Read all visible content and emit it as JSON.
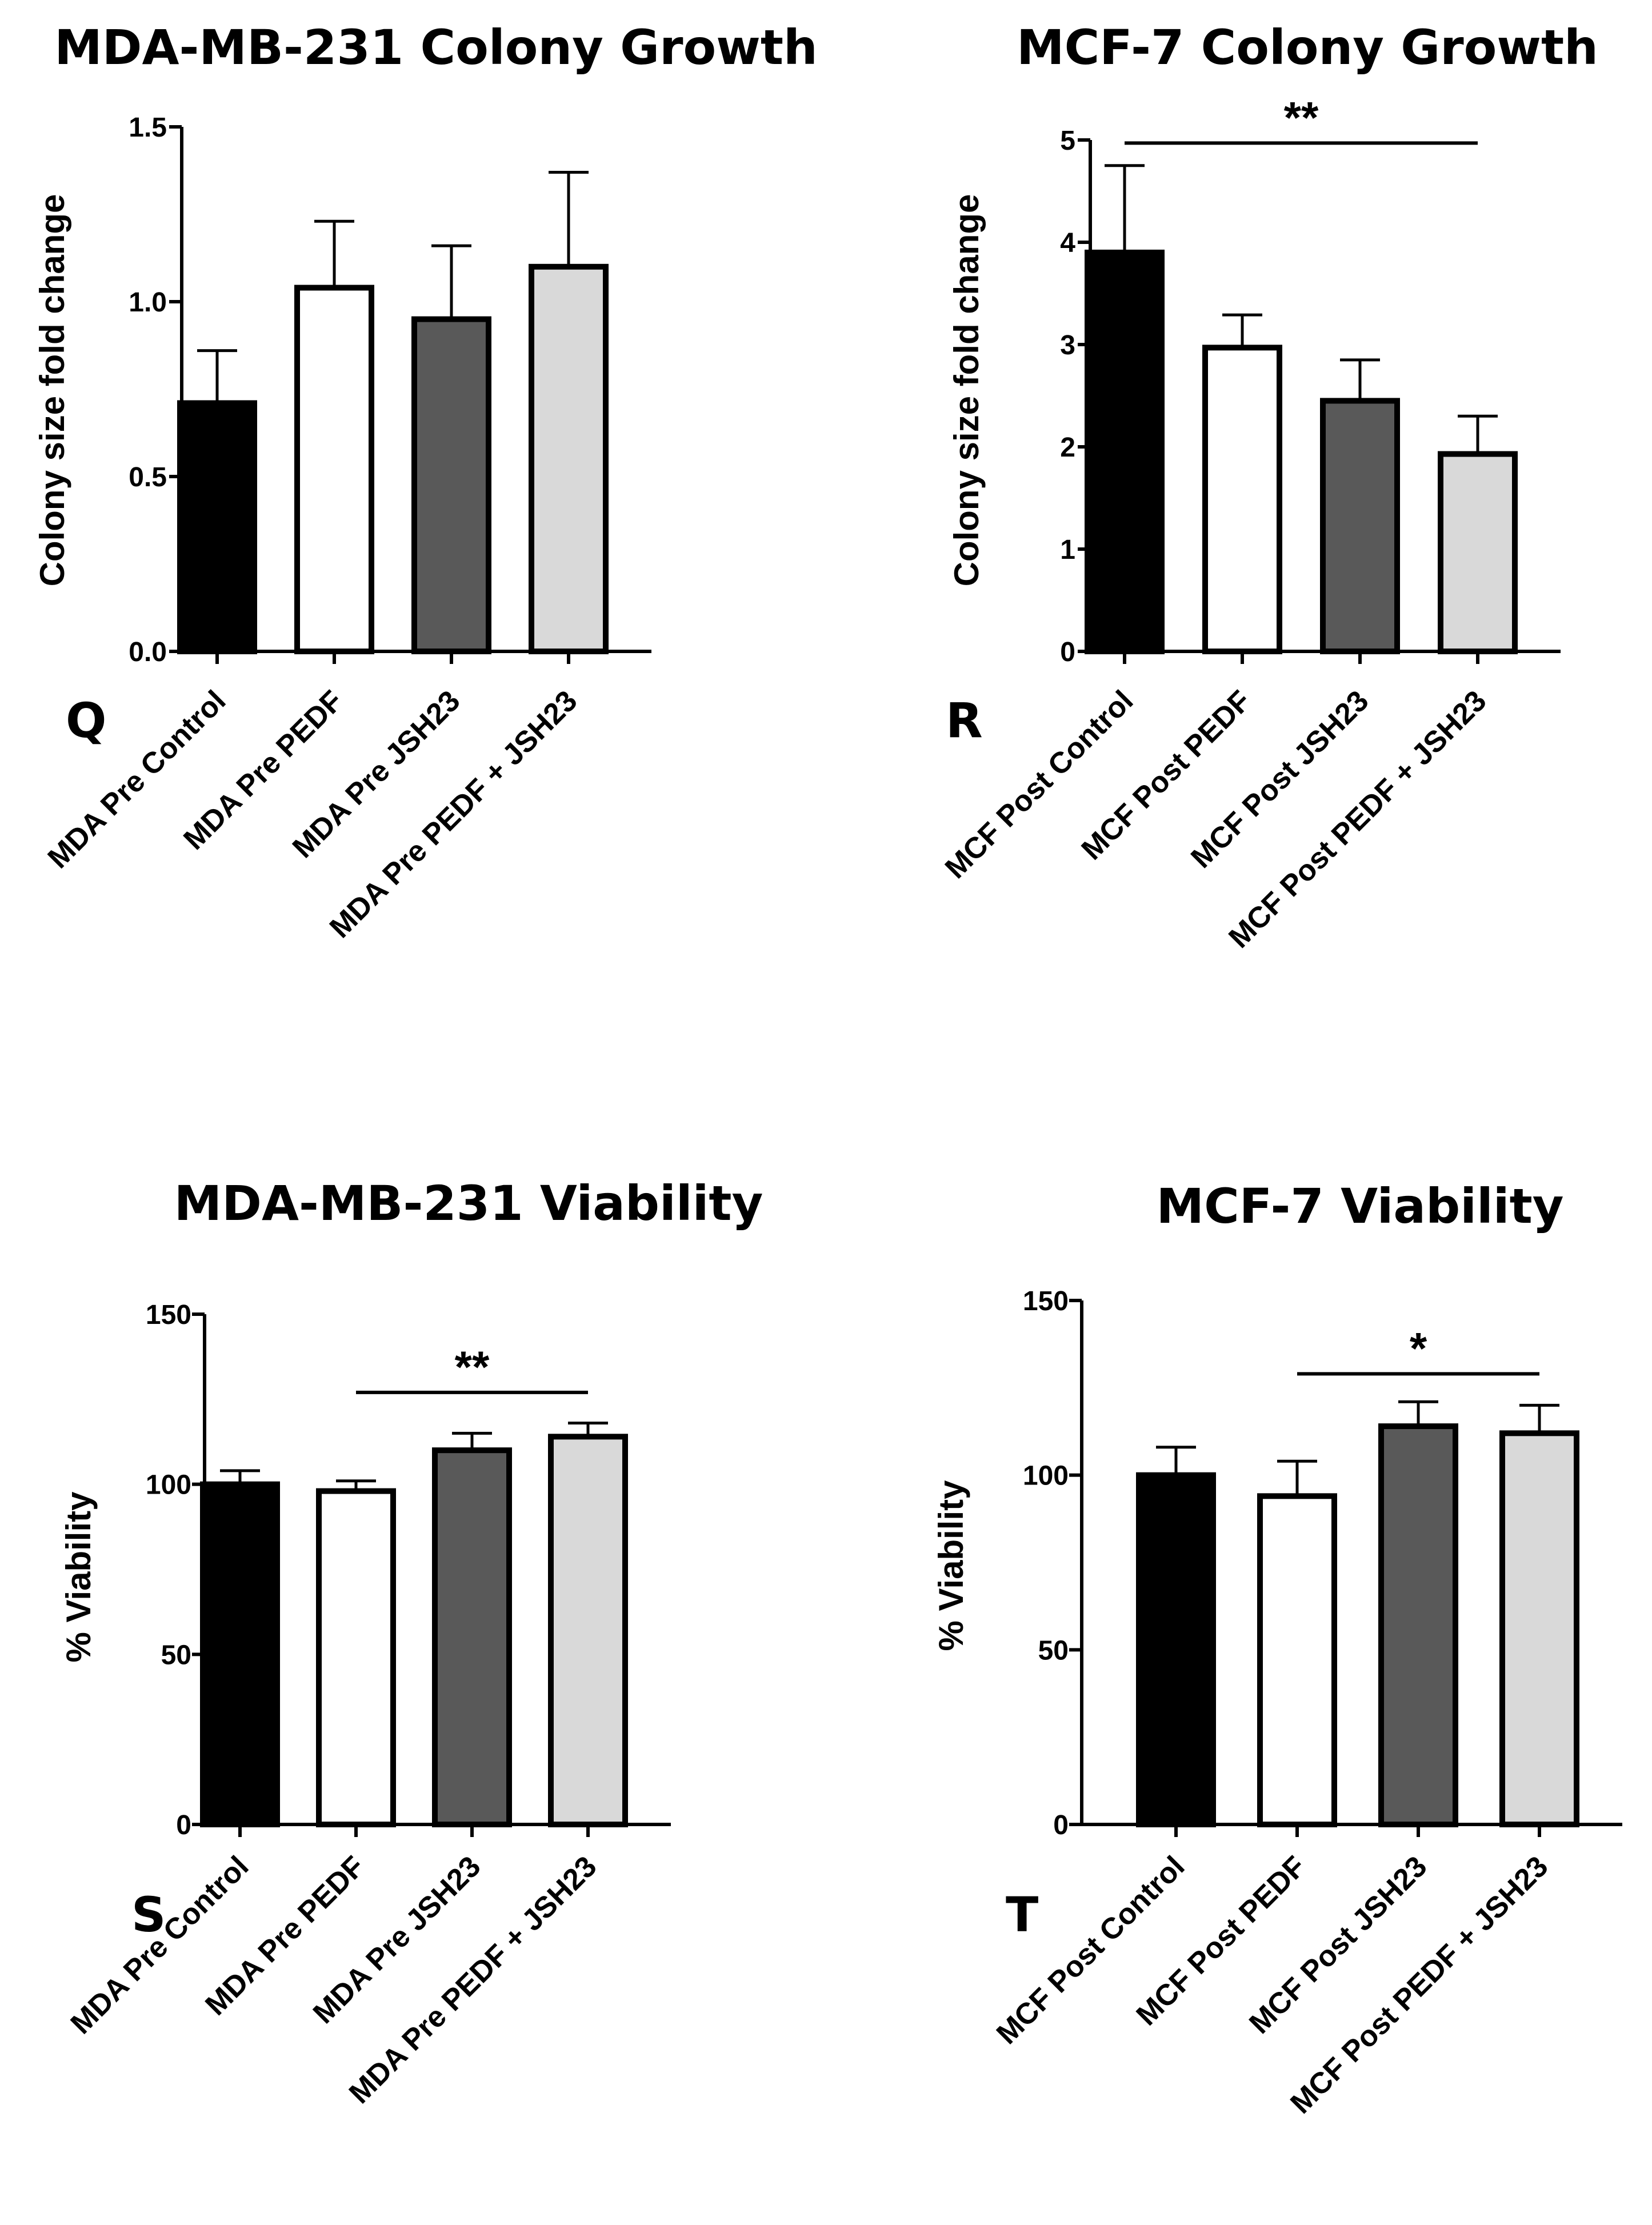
{
  "chart_data": [
    {
      "type": "bar",
      "panel": "Q",
      "title": "MDA-MB-231 Colony Growth",
      "xlabel": "",
      "ylabel": "Colony size fold change",
      "ylim": [
        0,
        1.5
      ],
      "yticks": [
        "0.0",
        "0.5",
        "1.0",
        "1.5"
      ],
      "categories": [
        "MDA Pre Control",
        "MDA Pre PEDF",
        "MDA Pre JSH23",
        "MDA Pre PEDF + JSH23"
      ],
      "values": [
        0.71,
        1.04,
        0.95,
        1.1
      ],
      "errors": [
        0.15,
        0.19,
        0.21,
        0.27
      ],
      "colors": [
        "#000000",
        "#ffffff",
        "#595959",
        "#d9d9d9"
      ],
      "significance": []
    },
    {
      "type": "bar",
      "panel": "R",
      "title": "MCF-7 Colony Growth",
      "xlabel": "",
      "ylabel": "Colony size fold change",
      "ylim": [
        0,
        5
      ],
      "yticks": [
        "0",
        "1",
        "2",
        "3",
        "4",
        "5"
      ],
      "categories": [
        "MCF Post Control",
        "MCF Post PEDF",
        "MCF Post JSH23",
        "MCF Post PEDF + JSH23"
      ],
      "values": [
        3.9,
        2.97,
        2.45,
        1.93
      ],
      "errors": [
        0.85,
        0.32,
        0.4,
        0.37
      ],
      "colors": [
        "#000000",
        "#ffffff",
        "#595959",
        "#d9d9d9"
      ],
      "significance": [
        {
          "from": 0,
          "to": 3,
          "at": 4.97,
          "label": "**"
        }
      ]
    },
    {
      "type": "bar",
      "panel": "S",
      "title": "MDA-MB-231 Viability",
      "xlabel": "",
      "ylabel": "% Viability",
      "ylim": [
        0,
        150
      ],
      "yticks": [
        "0",
        "50",
        "100",
        "150"
      ],
      "categories": [
        "MDA Pre Control",
        "MDA Pre PEDF",
        "MDA Pre JSH23",
        "MDA Pre PEDF + JSH23"
      ],
      "values": [
        100,
        98,
        110,
        114
      ],
      "errors": [
        4,
        3,
        5,
        4
      ],
      "colors": [
        "#000000",
        "#ffffff",
        "#595959",
        "#d9d9d9"
      ],
      "significance": [
        {
          "from": 1,
          "to": 3,
          "at": 127,
          "label": "**"
        }
      ]
    },
    {
      "type": "bar",
      "panel": "T",
      "title": "MCF-7 Viability",
      "xlabel": "",
      "ylabel": "% Viability",
      "ylim": [
        0,
        150
      ],
      "yticks": [
        "0",
        "50",
        "100",
        "150"
      ],
      "categories": [
        "MCF Post Control",
        "MCF Post PEDF",
        "MCF Post JSH23",
        "MCF Post PEDF + JSH23"
      ],
      "values": [
        100,
        94,
        114,
        112
      ],
      "errors": [
        8,
        10,
        7,
        8
      ],
      "colors": [
        "#000000",
        "#ffffff",
        "#595959",
        "#d9d9d9"
      ],
      "significance": [
        {
          "from": 1,
          "to": 3,
          "at": 129,
          "label": "*"
        }
      ]
    }
  ]
}
